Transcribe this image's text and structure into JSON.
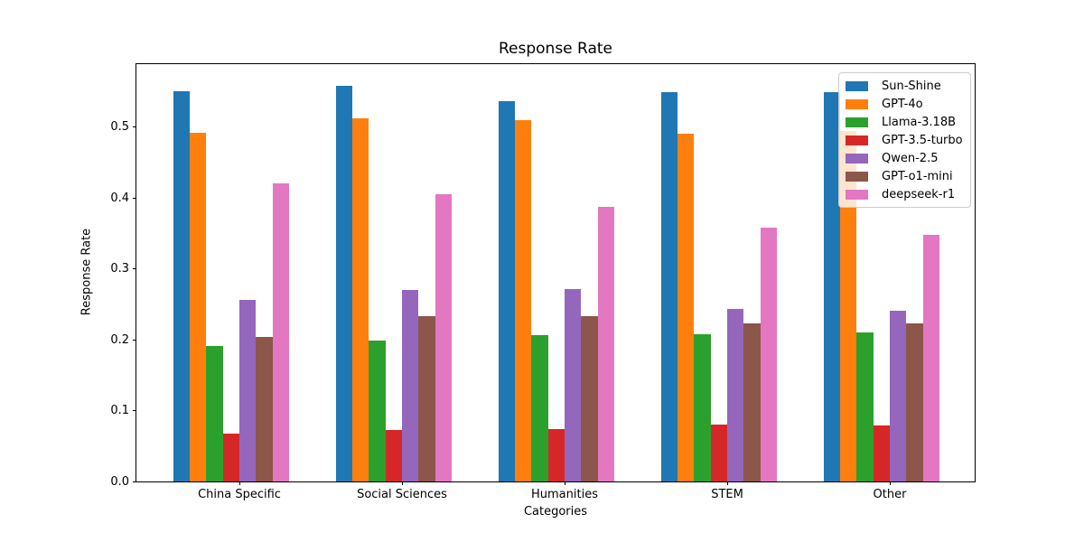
{
  "figure": {
    "background": "#ffffff",
    "text_color": "#000000",
    "spine_color": "#000000"
  },
  "chart_data": {
    "type": "bar",
    "title": "Response Rate",
    "xlabel": "Categories",
    "ylabel": "Response Rate",
    "categories": [
      "China Specific",
      "Social Sciences",
      "Humanities",
      "STEM",
      "Other"
    ],
    "series": [
      {
        "name": "Sun-Shine",
        "color": "#1f77b4",
        "values": [
          0.551,
          0.559,
          0.537,
          0.549,
          0.55
        ]
      },
      {
        "name": "GPT-4o",
        "color": "#ff7f0e",
        "values": [
          0.492,
          0.513,
          0.51,
          0.491,
          0.495
        ]
      },
      {
        "name": "Llama-3.18B",
        "color": "#2ca02c",
        "values": [
          0.191,
          0.199,
          0.206,
          0.208,
          0.211
        ]
      },
      {
        "name": "GPT-3.5-turbo",
        "color": "#d62728",
        "values": [
          0.068,
          0.073,
          0.074,
          0.08,
          0.079
        ]
      },
      {
        "name": "Qwen-2.5",
        "color": "#9467bd",
        "values": [
          0.256,
          0.27,
          0.272,
          0.244,
          0.241
        ]
      },
      {
        "name": "GPT-o1-mini",
        "color": "#8c564b",
        "values": [
          0.204,
          0.233,
          0.233,
          0.223,
          0.223
        ]
      },
      {
        "name": "deepseek-r1",
        "color": "#e377c2",
        "values": [
          0.421,
          0.406,
          0.388,
          0.358,
          0.348
        ]
      }
    ],
    "ylim": [
      0,
      0.589
    ],
    "yticks": [
      "0.0",
      "0.1",
      "0.2",
      "0.3",
      "0.4",
      "0.5"
    ],
    "grid": false,
    "legend": {
      "position": "upper-right",
      "frame_alpha": 0.8
    }
  }
}
